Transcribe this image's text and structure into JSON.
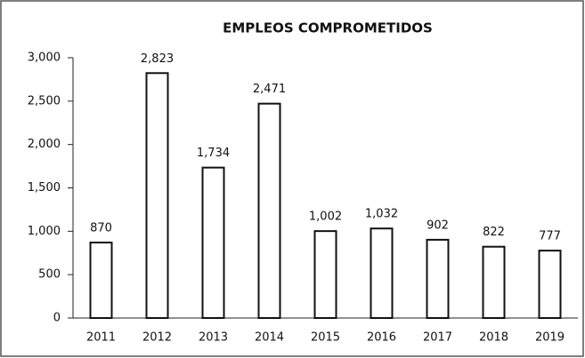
{
  "chart_data": {
    "type": "bar",
    "title": "EMPLEOS COMPROMETIDOS",
    "categories": [
      "2011",
      "2012",
      "2013",
      "2014",
      "2015",
      "2016",
      "2017",
      "2018",
      "2019"
    ],
    "values": [
      870,
      2823,
      1734,
      2471,
      1002,
      1032,
      902,
      822,
      777
    ],
    "value_labels": [
      "870",
      "2,823",
      "1,734",
      "2,471",
      "1,002",
      "1,032",
      "902",
      "822",
      "777"
    ],
    "color": "#ffffff",
    "ylim": [
      0,
      3000
    ],
    "yticks": [
      0,
      500,
      {
        "value": 1000,
        "label": "1,000"
      },
      {
        "value": 1500,
        "label": "1,500"
      },
      {
        "value": 2000,
        "label": "2,000"
      },
      {
        "value": 2500,
        "label": "2,500"
      },
      {
        "value": 3000,
        "label": "3,000"
      }
    ],
    "grid": false
  }
}
